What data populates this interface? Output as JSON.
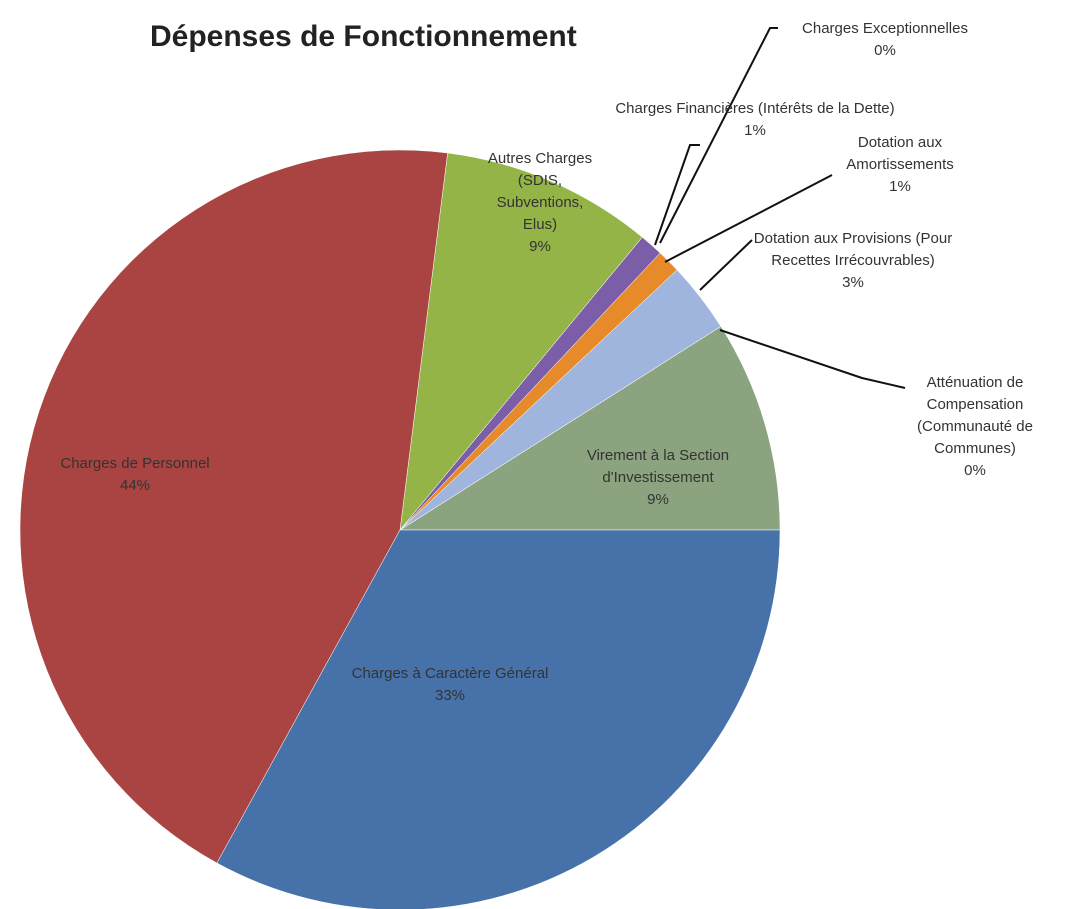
{
  "chart_data": {
    "type": "pie",
    "title": "Dépenses de Fonctionnement",
    "categories": [
      "Virement à la Section d'Investissement",
      "Atténuation de Compensation (Communauté de Communes)",
      "Dotation aux Provisions (Pour Recettes Irrécouvrables)",
      "Dotation aux Amortissements",
      "Charges Financières (Intérêts de la Dette)",
      "Charges Exceptionnelles",
      "Autres Charges (SDIS, Subventions, Elus)",
      "Charges de Personnel",
      "Charges à Caractère Général"
    ],
    "values": [
      9,
      0,
      3,
      1,
      1,
      0,
      9,
      44,
      33
    ],
    "value_labels": [
      "9%",
      "0%",
      "3%",
      "1%",
      "1%",
      "0%",
      "9%",
      "44%",
      "33%"
    ],
    "colors": [
      "#8ba37f",
      "#e8a797",
      "#a0b5de",
      "#e78a2a",
      "#7b5ea7",
      "#3fa8c4",
      "#95b447",
      "#a94442",
      "#4672a9"
    ]
  }
}
